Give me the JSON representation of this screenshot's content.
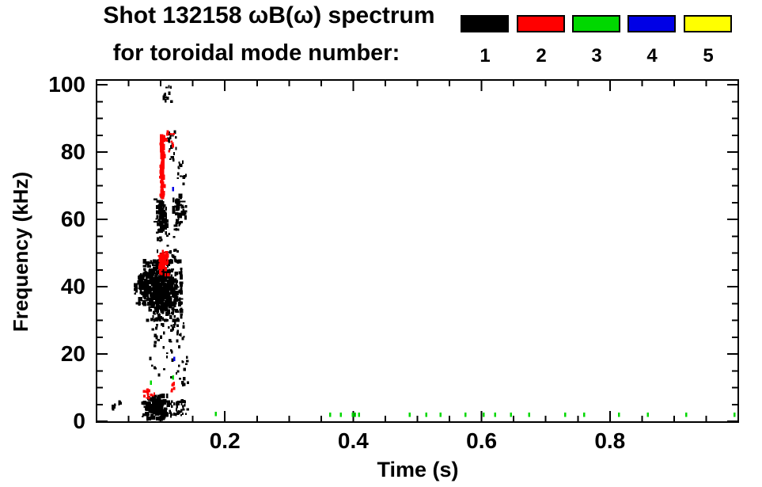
{
  "title": {
    "line1": "Shot 132158 ωB(ω) spectrum",
    "line2": "for toroidal mode number:"
  },
  "legend": {
    "items": [
      {
        "label": "1",
        "color": "#000000"
      },
      {
        "label": "2",
        "color": "#ff0000"
      },
      {
        "label": "3",
        "color": "#00d800"
      },
      {
        "label": "4",
        "color": "#0000e6"
      },
      {
        "label": "5",
        "color": "#ffff00"
      }
    ]
  },
  "chart_data": {
    "type": "scatter",
    "title": "Shot 132158 ωB(ω) spectrum for toroidal mode number: 1 2 3 4 5",
    "xlabel": "Time (s)",
    "ylabel": "Frequency (kHz)",
    "xlim": [
      0,
      1.0
    ],
    "ylim": [
      0,
      100
    ],
    "grid": false,
    "legend_position": "top-right",
    "xticks_major": [
      {
        "value": 0.2,
        "label": "0.2"
      },
      {
        "value": 0.4,
        "label": "0.4"
      },
      {
        "value": 0.6,
        "label": "0.6"
      },
      {
        "value": 0.8,
        "label": "0.8"
      }
    ],
    "xtick_minor_step": 0.05,
    "yticks_major": [
      {
        "value": 0,
        "label": "0"
      },
      {
        "value": 20,
        "label": "20"
      },
      {
        "value": 40,
        "label": "40"
      },
      {
        "value": 60,
        "label": "60"
      },
      {
        "value": 80,
        "label": "80"
      },
      {
        "value": 100,
        "label": "100"
      }
    ],
    "ytick_minor_step": 5,
    "series": [
      {
        "name": "toroidal mode n=1",
        "mode_number": 1,
        "color": "#000000",
        "clusters": [
          {
            "t": [
              0.102,
              0.118
            ],
            "f": [
              95.0,
              99.5
            ],
            "n": 12,
            "mode": "sparse"
          },
          {
            "t": [
              0.111,
              0.124
            ],
            "f": [
              77.0,
              86.0
            ],
            "n": 20,
            "mode": "sparse"
          },
          {
            "t": [
              0.126,
              0.14
            ],
            "f": [
              70.0,
              77.0
            ],
            "n": 14,
            "mode": "sparse"
          },
          {
            "t": [
              0.092,
              0.11
            ],
            "f": [
              56.0,
              66.5
            ],
            "n": 65,
            "mode": "dense"
          },
          {
            "t": [
              0.12,
              0.14
            ],
            "f": [
              57.0,
              67.0
            ],
            "n": 55,
            "mode": "dense"
          },
          {
            "t": [
              0.094,
              0.128
            ],
            "f": [
              47.0,
              57.0
            ],
            "n": 32,
            "mode": "sparse"
          },
          {
            "t": [
              0.075,
              0.132
            ],
            "f": [
              30.0,
              47.5
            ],
            "n": 480,
            "mode": "dense"
          },
          {
            "t": [
              0.06,
              0.082
            ],
            "f": [
              35.0,
              44.0
            ],
            "n": 65,
            "mode": "dense"
          },
          {
            "t": [
              0.085,
              0.138
            ],
            "f": [
              23.0,
              31.0
            ],
            "n": 38,
            "mode": "sparse"
          },
          {
            "t": [
              0.082,
              0.142
            ],
            "f": [
              13.0,
              23.0
            ],
            "n": 24,
            "mode": "sparse"
          },
          {
            "t": [
              0.13,
              0.145
            ],
            "f": [
              10.5,
              13.0
            ],
            "n": 8,
            "mode": "sparse"
          },
          {
            "t": [
              0.072,
              0.112
            ],
            "f": [
              0.8,
              7.5
            ],
            "n": 150,
            "mode": "dense"
          },
          {
            "t": [
              0.112,
              0.145
            ],
            "f": [
              1.5,
              6.0
            ],
            "n": 40,
            "mode": "sparse"
          },
          {
            "t": [
              0.024,
              0.038
            ],
            "f": [
              3.5,
              6.0
            ],
            "n": 10,
            "mode": "sparse"
          }
        ]
      },
      {
        "name": "toroidal mode n=2",
        "mode_number": 2,
        "color": "#ff0000",
        "clusters": [
          {
            "t": [
              0.0985,
              0.1065
            ],
            "f": [
              67.0,
              84.5
            ],
            "n": 95,
            "mode": "streak"
          },
          {
            "t": [
              0.108,
              0.121
            ],
            "f": [
              79.0,
              86.5
            ],
            "n": 10,
            "mode": "sparse"
          },
          {
            "t": [
              0.098,
              0.112
            ],
            "f": [
              43.5,
              50.5
            ],
            "n": 50,
            "mode": "dense"
          },
          {
            "t": [
              0.074,
              0.09
            ],
            "f": [
              6.8,
              9.5
            ],
            "n": 13,
            "mode": "sparse"
          },
          {
            "t": [
              0.116,
              0.1215
            ],
            "f": [
              8.8,
              11.2
            ],
            "n": 6,
            "mode": "sparse"
          }
        ]
      },
      {
        "name": "toroidal mode n=3",
        "mode_number": 3,
        "color": "#00d800",
        "marks": [
          [
            0.085,
            11.5
          ],
          [
            0.1195,
            13.0
          ],
          [
            0.186,
            2.2
          ],
          [
            0.364,
            2.0
          ],
          [
            0.381,
            2.0
          ],
          [
            0.399,
            2.0
          ],
          [
            0.403,
            2.0
          ],
          [
            0.409,
            2.0
          ],
          [
            0.488,
            2.0
          ],
          [
            0.514,
            2.0
          ],
          [
            0.536,
            2.0
          ],
          [
            0.575,
            2.0
          ],
          [
            0.603,
            2.0
          ],
          [
            0.621,
            2.0
          ],
          [
            0.646,
            2.0
          ],
          [
            0.674,
            2.0
          ],
          [
            0.73,
            2.0
          ],
          [
            0.76,
            2.0
          ],
          [
            0.814,
            2.0
          ],
          [
            0.859,
            2.0
          ],
          [
            0.919,
            2.0
          ],
          [
            0.994,
            2.0
          ]
        ]
      },
      {
        "name": "toroidal mode n=4",
        "mode_number": 4,
        "color": "#0000e6",
        "marks": [
          [
            0.1195,
            69.0
          ],
          [
            0.121,
            18.5
          ]
        ]
      },
      {
        "name": "toroidal mode n=5",
        "mode_number": 5,
        "color": "#ffff00",
        "marks": []
      }
    ]
  }
}
